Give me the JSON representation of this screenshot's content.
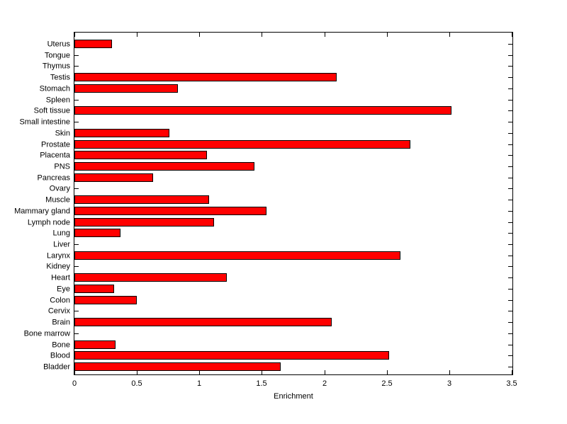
{
  "chart_data": {
    "type": "bar",
    "orientation": "horizontal",
    "title": "",
    "xlabel": "Enrichment",
    "ylabel": "",
    "categories": [
      "Uterus",
      "Tongue",
      "Thymus",
      "Testis",
      "Stomach",
      "Spleen",
      "Soft tissue",
      "Small intestine",
      "Skin",
      "Prostate",
      "Placenta",
      "PNS",
      "Pancreas",
      "Ovary",
      "Muscle",
      "Mammary gland",
      "Lymph node",
      "Lung",
      "Liver",
      "Larynx",
      "Kidney",
      "Heart",
      "Eye",
      "Colon",
      "Cervix",
      "Brain",
      "Bone marrow",
      "Bone",
      "Blood",
      "Bladder"
    ],
    "values": [
      0.3,
      0,
      0,
      2.1,
      0.83,
      0,
      3.02,
      0,
      0.76,
      2.69,
      1.06,
      1.44,
      0.63,
      0,
      1.08,
      1.54,
      1.12,
      0.37,
      0,
      2.61,
      0,
      1.22,
      0.32,
      0.5,
      0,
      2.06,
      0,
      0.33,
      2.52,
      1.65
    ],
    "xlim": [
      0,
      3.5
    ],
    "xticks": [
      0,
      0.5,
      1,
      1.5,
      2,
      2.5,
      3,
      3.5
    ],
    "xtick_labels": [
      "0",
      "0.5",
      "1",
      "1.5",
      "2",
      "2.5",
      "3",
      "3.5"
    ],
    "grid": false,
    "legend": null,
    "bar_color": "#ff0000",
    "bar_edge_color": "#000000",
    "axis_color": "#000000",
    "background_color": "#ffffff"
  }
}
